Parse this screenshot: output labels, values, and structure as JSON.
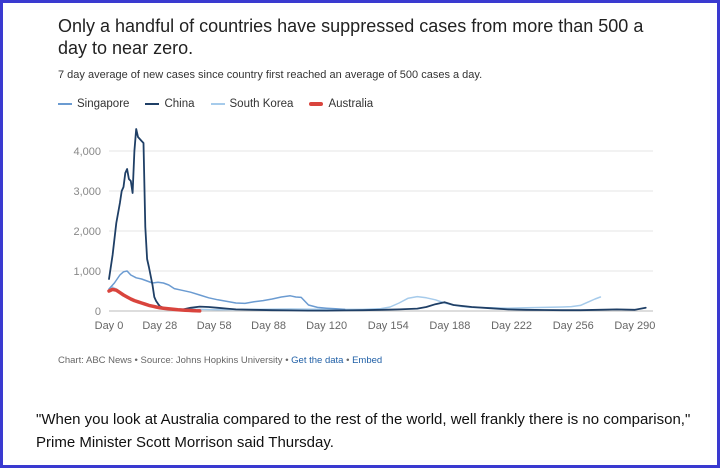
{
  "chart_data": {
    "type": "line",
    "title": "Only a handful of countries have suppressed cases from more than 500 a day to near zero.",
    "subtitle": "7 day average of new cases since country first reached an average of 500 cases a day.",
    "xlabel": "",
    "ylabel": "",
    "xlim": [
      0,
      300
    ],
    "ylim": [
      0,
      4500
    ],
    "x_ticks": [
      0,
      28,
      58,
      88,
      120,
      154,
      188,
      222,
      256,
      290
    ],
    "x_tick_labels": [
      "Day 0",
      "Day 28",
      "Day 58",
      "Day 88",
      "Day 120",
      "Day 154",
      "Day 188",
      "Day 222",
      "Day 256",
      "Day 290"
    ],
    "y_ticks": [
      0,
      1000,
      2000,
      3000,
      4000
    ],
    "y_tick_labels": [
      "0",
      "1,000",
      "2,000",
      "3,000",
      "4,000"
    ],
    "grid": true,
    "legend_position": "top-left",
    "series": [
      {
        "name": "Singapore",
        "color": "#6b9bd1",
        "width": 1.5,
        "x": [
          0,
          3,
          6,
          8,
          10,
          12,
          15,
          18,
          21,
          24,
          27,
          30,
          33,
          36,
          40,
          45,
          50,
          55,
          60,
          65,
          70,
          75,
          80,
          85,
          90,
          95,
          100,
          103,
          106,
          110,
          115,
          120,
          125,
          130
        ],
        "y": [
          550,
          700,
          900,
          980,
          1000,
          900,
          830,
          800,
          750,
          700,
          720,
          700,
          650,
          560,
          520,
          470,
          400,
          330,
          280,
          240,
          200,
          190,
          230,
          260,
          300,
          350,
          380,
          350,
          340,
          150,
          90,
          70,
          55,
          40
        ]
      },
      {
        "name": "China",
        "color": "#1f3f66",
        "width": 1.8,
        "x": [
          0,
          2,
          4,
          6,
          7,
          8,
          9,
          10,
          11,
          12,
          13,
          14,
          15,
          16,
          17,
          18,
          19,
          20,
          21,
          22,
          24,
          25,
          26,
          27,
          28,
          30,
          35,
          40,
          45,
          50,
          55,
          60,
          65,
          70,
          80,
          90,
          100,
          110,
          120,
          130,
          140,
          150,
          160,
          170,
          175,
          180,
          185,
          190,
          200,
          210,
          220,
          230,
          240,
          250,
          260,
          270,
          280,
          290,
          296
        ],
        "y": [
          800,
          1400,
          2200,
          2700,
          3000,
          3100,
          3450,
          3550,
          3300,
          3250,
          2950,
          4000,
          4550,
          4350,
          4300,
          4250,
          4200,
          2100,
          1300,
          1100,
          650,
          350,
          250,
          180,
          120,
          80,
          40,
          30,
          80,
          110,
          100,
          80,
          60,
          40,
          30,
          20,
          15,
          10,
          10,
          15,
          20,
          30,
          40,
          60,
          100,
          170,
          220,
          150,
          100,
          70,
          40,
          30,
          25,
          20,
          20,
          30,
          40,
          30,
          80
        ]
      },
      {
        "name": "South Korea",
        "color": "#a6cbeb",
        "width": 1.5,
        "x": [
          0,
          2,
          4,
          6,
          8,
          10,
          14,
          20,
          25,
          30,
          40,
          60,
          80,
          100,
          120,
          140,
          150,
          155,
          160,
          165,
          170,
          175,
          180,
          185,
          190,
          195,
          200,
          210,
          220,
          230,
          240,
          250,
          255,
          260,
          262,
          265,
          268,
          271
        ],
        "y": [
          500,
          600,
          550,
          480,
          420,
          350,
          250,
          150,
          100,
          70,
          50,
          30,
          40,
          50,
          40,
          40,
          60,
          100,
          200,
          320,
          360,
          330,
          280,
          200,
          150,
          110,
          90,
          80,
          70,
          80,
          90,
          100,
          110,
          140,
          180,
          240,
          300,
          350
        ]
      },
      {
        "name": "Australia",
        "color": "#d9443d",
        "width": 3.5,
        "x": [
          0,
          2,
          4,
          6,
          8,
          10,
          12,
          14,
          16,
          18,
          20,
          22,
          24,
          26,
          28,
          30,
          32,
          34,
          36,
          38,
          40,
          42,
          44,
          46,
          48,
          50
        ],
        "y": [
          500,
          540,
          520,
          460,
          400,
          350,
          300,
          260,
          230,
          200,
          170,
          140,
          120,
          100,
          80,
          70,
          60,
          50,
          40,
          30,
          25,
          20,
          15,
          10,
          5,
          3
        ]
      }
    ]
  },
  "footer": {
    "credit_prefix": "Chart: ABC News • Source: Johns Hopkins University • ",
    "get_data_link": "Get the data",
    "separator": " • ",
    "embed_link": "Embed"
  },
  "quote": "\"When you look at Australia compared to the rest of the world, well frankly there is no comparison,\" Prime Minister Scott Morrison said Thursday."
}
